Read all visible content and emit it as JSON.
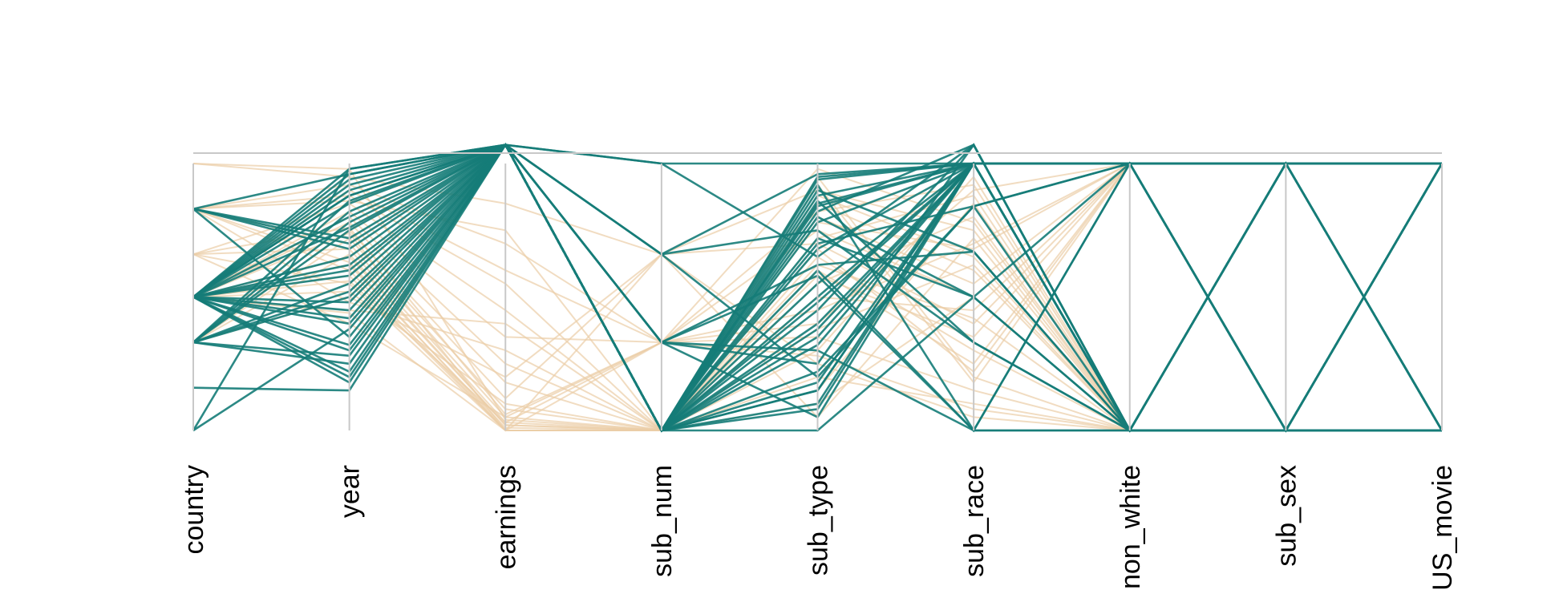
{
  "chart_data": {
    "type": "parallel_coordinates",
    "title": "",
    "dimensions": [
      "country",
      "year",
      "earnings",
      "sub_num",
      "sub_type",
      "sub_race",
      "non_white",
      "sub_sex",
      "US_movie"
    ],
    "grid": false,
    "legend": "none",
    "colors": {
      "highlight": "#157c78",
      "background": "#ebcda6",
      "axis": "#c8c8c8"
    },
    "value_range": [
      0,
      1
    ],
    "series": [
      {
        "group": "highlight",
        "values": [
          [
            0.5,
            0.98,
            1.07,
            1.0,
            0.65,
            1.07,
            0.0,
            1.0,
            0.0
          ],
          [
            0.5,
            0.96,
            1.07,
            0.0,
            0.15,
            1.0,
            1.0,
            0.0,
            1.0
          ],
          [
            0.5,
            0.92,
            1.07,
            0.33,
            0.3,
            0.0,
            0.0,
            0.0,
            0.0
          ],
          [
            0.5,
            0.88,
            1.07,
            0.0,
            0.85,
            1.0,
            1.0,
            1.0,
            1.0
          ],
          [
            0.5,
            0.85,
            1.07,
            0.0,
            0.45,
            1.07,
            0.0,
            0.0,
            0.0
          ],
          [
            0.33,
            0.82,
            1.07,
            0.0,
            0.95,
            1.0,
            1.0,
            1.0,
            0.0
          ],
          [
            0.33,
            0.78,
            1.07,
            0.66,
            0.2,
            0.84,
            0.0,
            0.0,
            1.0
          ],
          [
            0.33,
            0.75,
            1.07,
            0.0,
            0.55,
            1.0,
            0.0,
            1.0,
            1.0
          ],
          [
            0.83,
            0.72,
            1.07,
            0.0,
            0.8,
            0.5,
            1.0,
            0.0,
            0.0
          ],
          [
            0.83,
            0.68,
            1.07,
            0.33,
            0.05,
            1.0,
            0.0,
            1.0,
            1.0
          ],
          [
            0.5,
            0.65,
            1.07,
            0.0,
            0.9,
            0.67,
            0.0,
            0.0,
            1.0
          ],
          [
            0.5,
            0.62,
            1.07,
            0.0,
            0.35,
            1.0,
            1.0,
            0.0,
            0.0
          ],
          [
            0.5,
            0.58,
            1.07,
            0.66,
            0.75,
            0.33,
            0.0,
            1.0,
            0.0
          ],
          [
            0.33,
            0.55,
            1.07,
            0.0,
            0.1,
            1.0,
            1.0,
            1.0,
            1.0
          ],
          [
            0.33,
            0.5,
            1.07,
            0.0,
            0.6,
            0.0,
            0.0,
            0.0,
            1.0
          ],
          [
            0.5,
            0.45,
            1.07,
            0.0,
            0.88,
            1.0,
            1.0,
            0.0,
            0.0
          ],
          [
            0.5,
            0.4,
            1.07,
            0.33,
            0.25,
            1.07,
            0.0,
            1.0,
            0.0
          ],
          [
            0.83,
            0.35,
            1.07,
            0.0,
            0.7,
            0.84,
            1.0,
            1.0,
            1.0
          ],
          [
            0.5,
            0.3,
            1.07,
            0.0,
            0.4,
            1.0,
            0.0,
            0.0,
            1.0
          ],
          [
            0.33,
            0.25,
            1.07,
            0.0,
            0.92,
            0.0,
            1.0,
            0.0,
            0.0
          ],
          [
            0.5,
            0.2,
            1.07,
            0.0,
            0.15,
            1.0,
            0.0,
            1.0,
            1.0
          ],
          [
            0.16,
            0.15,
            1.07,
            0.0,
            0.82,
            1.07,
            0.0,
            0.0,
            0.0
          ],
          [
            0.0,
            0.98,
            1.07,
            0.0,
            0.5,
            1.0,
            1.0,
            1.0,
            0.0
          ],
          [
            0.5,
            0.94,
            1.07,
            1.0,
            1.0,
            1.0,
            0.0,
            0.0,
            1.0
          ],
          [
            0.5,
            0.9,
            1.07,
            0.0,
            0.0,
            0.5,
            0.0,
            1.0,
            1.0
          ],
          [
            0.33,
            0.86,
            1.07,
            0.0,
            0.78,
            1.0,
            1.0,
            0.0,
            0.0
          ],
          [
            0.5,
            0.8,
            1.07,
            0.33,
            0.62,
            0.67,
            0.0,
            0.0,
            1.0
          ],
          [
            0.5,
            0.76,
            1.07,
            0.0,
            0.32,
            1.0,
            1.0,
            1.0,
            0.0
          ],
          [
            0.83,
            0.7,
            1.07,
            0.0,
            0.86,
            0.33,
            0.0,
            1.0,
            0.0
          ],
          [
            0.5,
            0.6,
            1.07,
            0.0,
            0.48,
            1.0,
            0.0,
            0.0,
            1.0
          ],
          [
            0.33,
            0.52,
            1.07,
            0.66,
            0.96,
            1.0,
            1.0,
            0.0,
            1.0
          ],
          [
            0.5,
            0.48,
            1.07,
            0.0,
            0.22,
            0.84,
            1.0,
            1.0,
            0.0
          ],
          [
            0.5,
            0.42,
            1.07,
            0.0,
            0.68,
            1.0,
            0.0,
            1.0,
            1.0
          ],
          [
            0.0,
            0.38,
            1.07,
            0.0,
            0.08,
            1.0,
            0.0,
            0.0,
            0.0
          ],
          [
            0.5,
            0.32,
            1.07,
            0.33,
            0.58,
            0.0,
            1.0,
            0.0,
            1.0
          ],
          [
            0.33,
            0.28,
            1.07,
            0.0,
            0.84,
            1.0,
            1.0,
            1.0,
            1.0
          ],
          [
            0.5,
            0.22,
            1.07,
            0.0,
            0.38,
            1.0,
            0.0,
            1.0,
            0.0
          ],
          [
            0.5,
            0.18,
            1.07,
            0.0,
            0.72,
            0.5,
            0.0,
            0.0,
            1.0
          ],
          [
            0.83,
            0.96,
            1.07,
            0.0,
            0.18,
            1.0,
            1.0,
            0.0,
            0.0
          ],
          [
            0.5,
            0.88,
            1.07,
            0.0,
            0.94,
            1.0,
            0.0,
            1.0,
            1.0
          ]
        ]
      },
      {
        "group": "background",
        "values": [
          [
            1.0,
            0.95,
            0.85,
            0.66,
            0.9,
            0.75,
            0.0,
            0.0,
            0.0
          ],
          [
            0.83,
            0.92,
            0.7,
            0.33,
            0.75,
            0.5,
            0.0,
            1.0,
            1.0
          ],
          [
            0.83,
            0.88,
            0.55,
            0.0,
            0.6,
            0.25,
            1.0,
            0.0,
            1.0
          ],
          [
            0.66,
            0.85,
            0.45,
            0.0,
            0.85,
            0.6,
            0.0,
            1.0,
            0.0
          ],
          [
            0.5,
            0.82,
            0.35,
            0.33,
            0.4,
            0.9,
            1.0,
            1.0,
            1.0
          ],
          [
            0.5,
            0.8,
            0.25,
            0.0,
            0.2,
            0.1,
            0.0,
            0.0,
            1.0
          ],
          [
            0.5,
            0.78,
            0.18,
            0.0,
            0.55,
            0.8,
            0.0,
            1.0,
            0.0
          ],
          [
            0.33,
            0.75,
            0.12,
            0.66,
            0.7,
            0.4,
            1.0,
            0.0,
            0.0
          ],
          [
            0.33,
            0.72,
            0.08,
            0.0,
            0.3,
            0.95,
            0.0,
            1.0,
            1.0
          ],
          [
            0.83,
            0.7,
            0.05,
            0.0,
            0.95,
            0.2,
            0.0,
            0.0,
            0.0
          ],
          [
            0.66,
            0.68,
            0.03,
            0.33,
            0.45,
            0.7,
            1.0,
            1.0,
            1.0
          ],
          [
            0.5,
            0.65,
            0.02,
            0.0,
            0.65,
            0.3,
            0.0,
            0.0,
            1.0
          ],
          [
            0.5,
            0.62,
            0.01,
            0.0,
            0.15,
            0.85,
            0.0,
            1.0,
            0.0
          ],
          [
            0.83,
            0.6,
            0.0,
            0.0,
            0.8,
            0.55,
            1.0,
            0.0,
            1.0
          ],
          [
            0.5,
            0.58,
            0.0,
            0.33,
            0.35,
            0.15,
            0.0,
            1.0,
            0.0
          ],
          [
            0.66,
            0.55,
            0.0,
            0.0,
            0.88,
            0.65,
            0.0,
            0.0,
            1.0
          ],
          [
            0.5,
            0.52,
            0.1,
            0.0,
            0.5,
            0.45,
            1.0,
            1.0,
            0.0
          ],
          [
            0.33,
            0.5,
            0.2,
            0.66,
            0.25,
            0.05,
            0.0,
            0.0,
            1.0
          ],
          [
            0.83,
            0.48,
            0.3,
            0.0,
            0.72,
            0.88,
            0.0,
            1.0,
            1.0
          ],
          [
            0.5,
            0.45,
            0.4,
            0.0,
            0.58,
            0.35,
            1.0,
            0.0,
            0.0
          ],
          [
            0.5,
            0.9,
            0.6,
            0.33,
            0.98,
            0.78,
            0.0,
            1.0,
            0.0
          ],
          [
            0.83,
            0.86,
            0.75,
            0.0,
            0.1,
            0.5,
            0.0,
            0.0,
            1.0
          ],
          [
            1.0,
            0.98,
            0.04,
            0.0,
            0.68,
            0.22,
            1.0,
            1.0,
            1.0
          ],
          [
            0.66,
            0.76,
            0.06,
            0.33,
            0.82,
            0.92,
            0.0,
            0.0,
            0.0
          ],
          [
            0.5,
            0.74,
            0.0,
            0.0,
            0.38,
            0.62,
            0.0,
            1.0,
            1.0
          ],
          [
            0.33,
            0.66,
            0.02,
            0.0,
            0.92,
            0.18,
            1.0,
            0.0,
            1.0
          ],
          [
            0.83,
            0.63,
            0.0,
            0.66,
            0.05,
            0.72,
            0.0,
            1.0,
            0.0
          ],
          [
            0.5,
            0.56,
            0.03,
            0.0,
            0.62,
            0.42,
            0.0,
            0.0,
            0.0
          ],
          [
            0.5,
            0.44,
            0.0,
            0.0,
            0.78,
            0.68,
            1.0,
            1.0,
            1.0
          ],
          [
            0.66,
            0.4,
            0.05,
            0.33,
            0.28,
            0.08,
            0.0,
            0.0,
            1.0
          ]
        ]
      }
    ]
  }
}
